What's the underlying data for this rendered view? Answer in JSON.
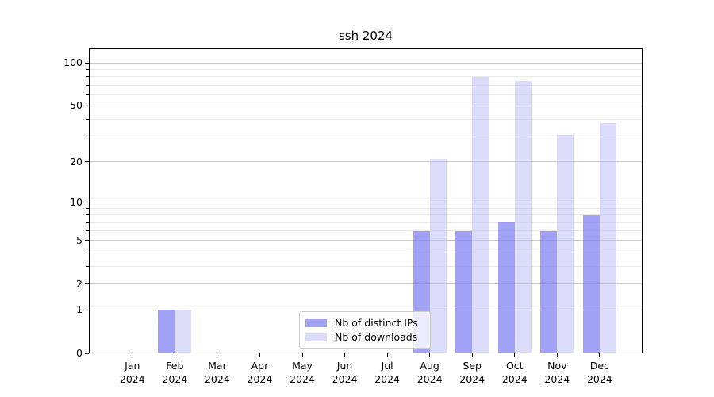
{
  "chart_data": {
    "type": "bar",
    "title": "ssh 2024",
    "x_tick_labels": [
      [
        "Jan",
        "2024"
      ],
      [
        "Feb",
        "2024"
      ],
      [
        "Mar",
        "2024"
      ],
      [
        "Apr",
        "2024"
      ],
      [
        "May",
        "2024"
      ],
      [
        "Jun",
        "2024"
      ],
      [
        "Jul",
        "2024"
      ],
      [
        "Aug",
        "2024"
      ],
      [
        "Sep",
        "2024"
      ],
      [
        "Oct",
        "2024"
      ],
      [
        "Nov",
        "2024"
      ],
      [
        "Dec",
        "2024"
      ]
    ],
    "series": [
      {
        "name": "Nb of distinct IPs",
        "color": "#a4a4f4",
        "values": [
          0,
          1,
          0,
          0,
          0,
          0,
          0,
          6,
          6,
          7,
          6,
          8
        ]
      },
      {
        "name": "Nb of downloads",
        "color": "#dcdcf9",
        "values": [
          0,
          1,
          0,
          0,
          0,
          0,
          0,
          21,
          80,
          75,
          31,
          38
        ]
      }
    ],
    "y_scale": "log1p",
    "y_major_ticks": [
      0,
      1,
      2,
      5,
      10,
      20,
      50,
      100
    ],
    "y_minor_ticks": [
      3,
      4,
      6,
      7,
      8,
      9,
      30,
      40,
      60,
      70,
      80,
      90
    ],
    "ylim": [
      0,
      126
    ],
    "xlabel": "",
    "ylabel": "",
    "grid": true,
    "legend_position": "lower center",
    "colors": {
      "bar_distinct_ips": "#a4a4f4",
      "bar_downloads": "#dcdcf9",
      "grid_major": "#c9c9c9",
      "grid_minor": "#e9e9e9",
      "axes": "#000000"
    }
  }
}
